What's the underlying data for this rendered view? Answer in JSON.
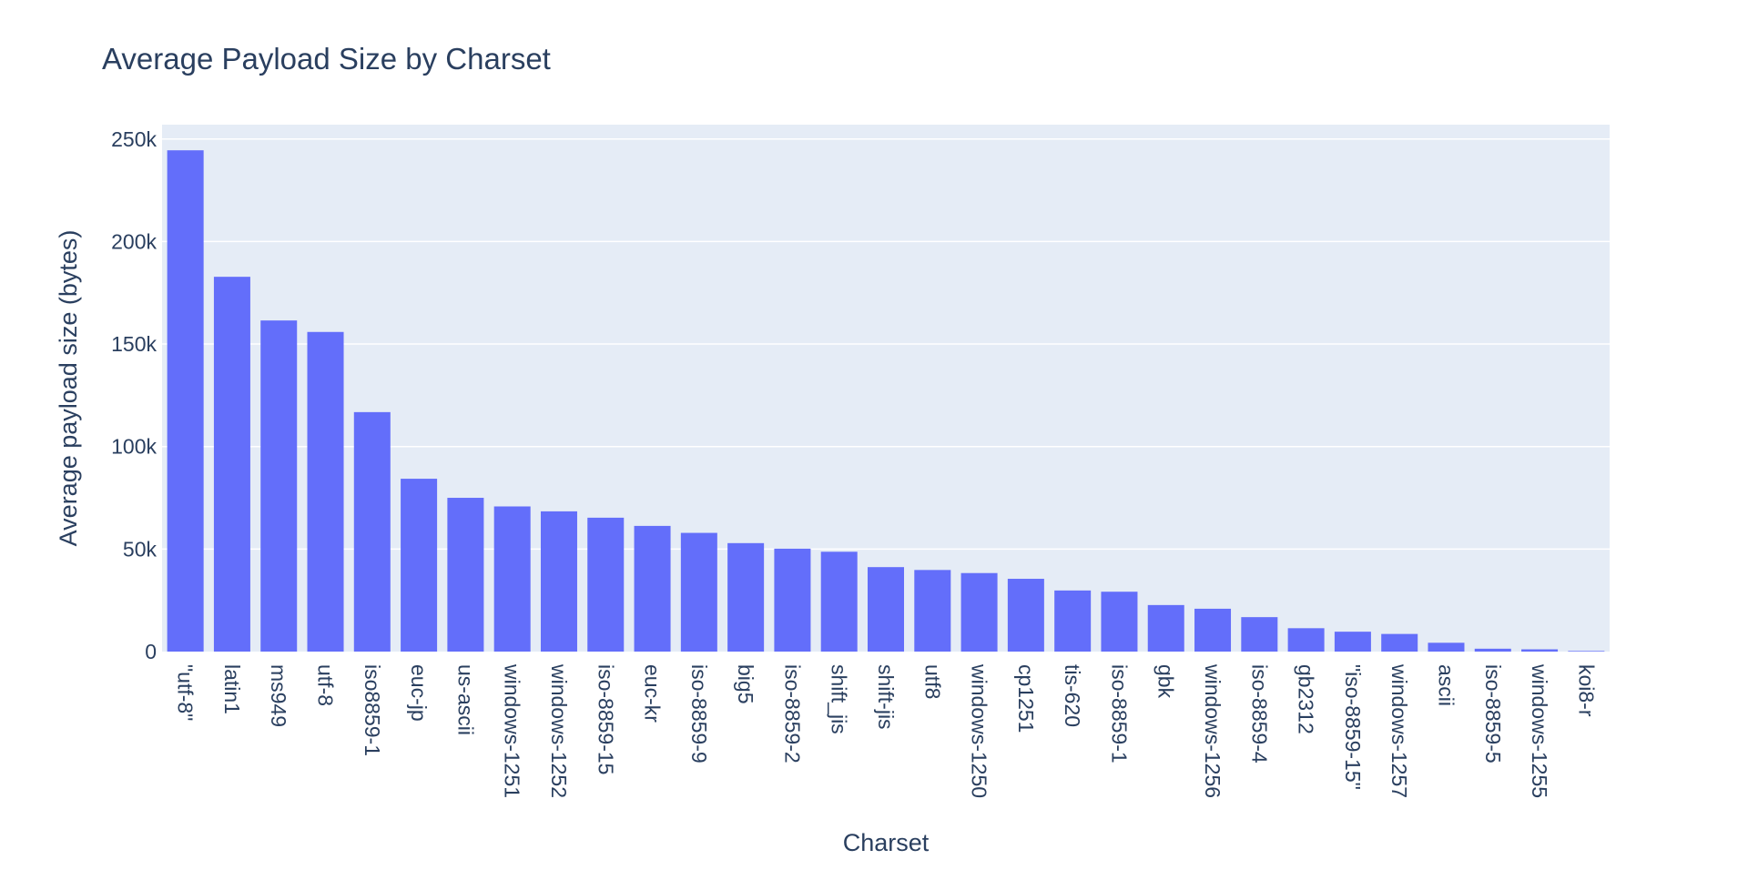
{
  "chart_data": {
    "type": "bar",
    "title": "Average Payload Size by Charset",
    "xlabel": "Charset",
    "ylabel": "Average payload size (bytes)",
    "ylim": [
      0,
      257000
    ],
    "yticks": [
      {
        "value": 0,
        "label": "0"
      },
      {
        "value": 50000,
        "label": "50k"
      },
      {
        "value": 100000,
        "label": "100k"
      },
      {
        "value": 150000,
        "label": "150k"
      },
      {
        "value": 200000,
        "label": "200k"
      },
      {
        "value": 250000,
        "label": "250k"
      }
    ],
    "grid": true,
    "legend": "none",
    "colors": {
      "bar": "#636efa",
      "plot_bg": "#e5ecf6",
      "grid": "#ffffff",
      "text": "#2a3f5f"
    },
    "categories": [
      "\"utf-8\"",
      "latin1",
      "ms949",
      "utf-8",
      "iso8859-1",
      "euc-jp",
      "us-ascii",
      "windows-1251",
      "windows-1252",
      "iso-8859-15",
      "euc-kr",
      "iso-8859-9",
      "big5",
      "iso-8859-2",
      "shift_jis",
      "shift-jis",
      "utf8",
      "windows-1250",
      "cp1251",
      "tis-620",
      "iso-8859-1",
      "gbk",
      "windows-1256",
      "iso-8859-4",
      "gb2312",
      "\"iso-8859-15\"",
      "windows-1257",
      "ascii",
      "iso-8859-5",
      "windows-1255",
      "koi8-r"
    ],
    "values": [
      244500,
      182800,
      161500,
      155900,
      116800,
      84300,
      75000,
      70800,
      68400,
      65300,
      61300,
      57900,
      52900,
      50200,
      48700,
      41200,
      39800,
      38300,
      35500,
      29800,
      29200,
      22700,
      20900,
      16800,
      11400,
      9700,
      8600,
      4300,
      1400,
      1100,
      300
    ]
  }
}
